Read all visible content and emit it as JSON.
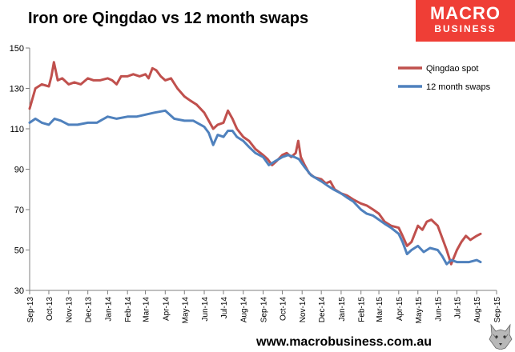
{
  "header": {
    "title": "Iron ore Qingdao vs 12 month swaps"
  },
  "logo": {
    "line1": "MACRO",
    "line2": "BUSINESS",
    "bg_color": "#ef3e36"
  },
  "footer": {
    "url": "www.macrobusiness.com.au"
  },
  "wolf_icon": "wolf-head-icon",
  "colors": {
    "qingdao": "#c0504d",
    "swaps": "#4f81bd",
    "axis": "#7f7f7f"
  },
  "chart_data": {
    "type": "line",
    "title": "Iron ore Qingdao vs 12 month swaps",
    "xlabel": "",
    "ylabel": "",
    "ylim": [
      30,
      150
    ],
    "yticks": [
      30,
      50,
      70,
      90,
      110,
      130,
      150
    ],
    "xlim": [
      "2013-09-01",
      "2015-09-01"
    ],
    "xtick_labels": [
      "Sep-13",
      "Oct-13",
      "Nov-13",
      "Dec-13",
      "Jan-14",
      "Feb-14",
      "Mar-14",
      "Apr-14",
      "May-14",
      "Jun-14",
      "Jul-14",
      "Aug-14",
      "Sep-14",
      "Oct-14",
      "Nov-14",
      "Dec-14",
      "Jan-15",
      "Feb-15",
      "Mar-15",
      "Apr-15",
      "May-15",
      "Jun-15",
      "Jul-15",
      "Aug-15",
      "Sep-15"
    ],
    "grid": false,
    "legend_position": "top-right",
    "series": [
      {
        "name": "Qingdao spot",
        "x": [
          "2013-09-01",
          "2013-09-10",
          "2013-09-20",
          "2013-10-01",
          "2013-10-05",
          "2013-10-09",
          "2013-10-15",
          "2013-10-22",
          "2013-11-01",
          "2013-11-10",
          "2013-11-20",
          "2013-12-01",
          "2013-12-10",
          "2013-12-20",
          "2014-01-01",
          "2014-01-08",
          "2014-01-15",
          "2014-01-22",
          "2014-02-01",
          "2014-02-10",
          "2014-02-20",
          "2014-03-01",
          "2014-03-06",
          "2014-03-12",
          "2014-03-18",
          "2014-03-25",
          "2014-04-01",
          "2014-04-10",
          "2014-04-20",
          "2014-05-01",
          "2014-05-10",
          "2014-05-20",
          "2014-06-01",
          "2014-06-08",
          "2014-06-15",
          "2014-06-22",
          "2014-07-01",
          "2014-07-08",
          "2014-07-15",
          "2014-07-22",
          "2014-08-01",
          "2014-08-10",
          "2014-08-20",
          "2014-09-01",
          "2014-09-08",
          "2014-09-15",
          "2014-09-22",
          "2014-10-01",
          "2014-10-08",
          "2014-10-15",
          "2014-10-22",
          "2014-10-26",
          "2014-10-30",
          "2014-11-05",
          "2014-11-12",
          "2014-11-20",
          "2014-12-01",
          "2014-12-08",
          "2014-12-15",
          "2014-12-22",
          "2015-01-01",
          "2015-01-10",
          "2015-01-20",
          "2015-02-01",
          "2015-02-10",
          "2015-02-20",
          "2015-03-01",
          "2015-03-10",
          "2015-03-20",
          "2015-04-01",
          "2015-04-07",
          "2015-04-14",
          "2015-04-21",
          "2015-05-01",
          "2015-05-08",
          "2015-05-15",
          "2015-05-22",
          "2015-06-01",
          "2015-06-08",
          "2015-06-15",
          "2015-06-22",
          "2015-07-01",
          "2015-07-08",
          "2015-07-15",
          "2015-07-22",
          "2015-08-01",
          "2015-08-07"
        ],
        "values": [
          120,
          130,
          132,
          131,
          136,
          143,
          134,
          135,
          132,
          133,
          132,
          135,
          134,
          134,
          135,
          134,
          132,
          136,
          136,
          137,
          136,
          137,
          135,
          140,
          139,
          136,
          134,
          135,
          130,
          126,
          124,
          122,
          118,
          114,
          110,
          112,
          113,
          119,
          115,
          110,
          106,
          104,
          100,
          97,
          95,
          92,
          94,
          97,
          98,
          96,
          98,
          104,
          96,
          92,
          88,
          86,
          85,
          83,
          84,
          80,
          78,
          77,
          75,
          73,
          72,
          70,
          68,
          64,
          62,
          61,
          57,
          52,
          54,
          62,
          60,
          64,
          65,
          62,
          56,
          50,
          43,
          50,
          54,
          57,
          55,
          57,
          58
        ]
      },
      {
        "name": "12 month swaps",
        "x": [
          "2013-09-01",
          "2013-09-10",
          "2013-09-20",
          "2013-10-01",
          "2013-10-10",
          "2013-10-20",
          "2013-11-01",
          "2013-11-15",
          "2013-12-01",
          "2013-12-15",
          "2014-01-01",
          "2014-01-15",
          "2014-02-01",
          "2014-02-15",
          "2014-03-01",
          "2014-03-15",
          "2014-04-01",
          "2014-04-15",
          "2014-05-01",
          "2014-05-15",
          "2014-06-01",
          "2014-06-08",
          "2014-06-15",
          "2014-06-22",
          "2014-07-01",
          "2014-07-08",
          "2014-07-15",
          "2014-07-22",
          "2014-08-01",
          "2014-08-10",
          "2014-08-20",
          "2014-09-01",
          "2014-09-10",
          "2014-09-20",
          "2014-10-01",
          "2014-10-10",
          "2014-10-20",
          "2014-10-27",
          "2014-11-05",
          "2014-11-15",
          "2014-12-01",
          "2014-12-10",
          "2014-12-20",
          "2015-01-01",
          "2015-01-10",
          "2015-01-20",
          "2015-02-01",
          "2015-02-10",
          "2015-02-20",
          "2015-03-01",
          "2015-03-10",
          "2015-03-20",
          "2015-04-01",
          "2015-04-07",
          "2015-04-14",
          "2015-04-21",
          "2015-05-01",
          "2015-05-10",
          "2015-05-20",
          "2015-06-01",
          "2015-06-08",
          "2015-06-15",
          "2015-06-22",
          "2015-07-01",
          "2015-07-10",
          "2015-07-20",
          "2015-08-01",
          "2015-08-07"
        ],
        "values": [
          113,
          115,
          113,
          112,
          115,
          114,
          112,
          112,
          113,
          113,
          116,
          115,
          116,
          116,
          117,
          118,
          119,
          115,
          114,
          114,
          111,
          108,
          102,
          107,
          106,
          109,
          109,
          106,
          104,
          101,
          98,
          96,
          92,
          94,
          96,
          97,
          96,
          95,
          91,
          87,
          84,
          82,
          80,
          78,
          76,
          74,
          70,
          68,
          67,
          65,
          63,
          61,
          58,
          54,
          48,
          50,
          52,
          49,
          51,
          50,
          47,
          43,
          45,
          44,
          44,
          44,
          45,
          44
        ]
      }
    ]
  }
}
